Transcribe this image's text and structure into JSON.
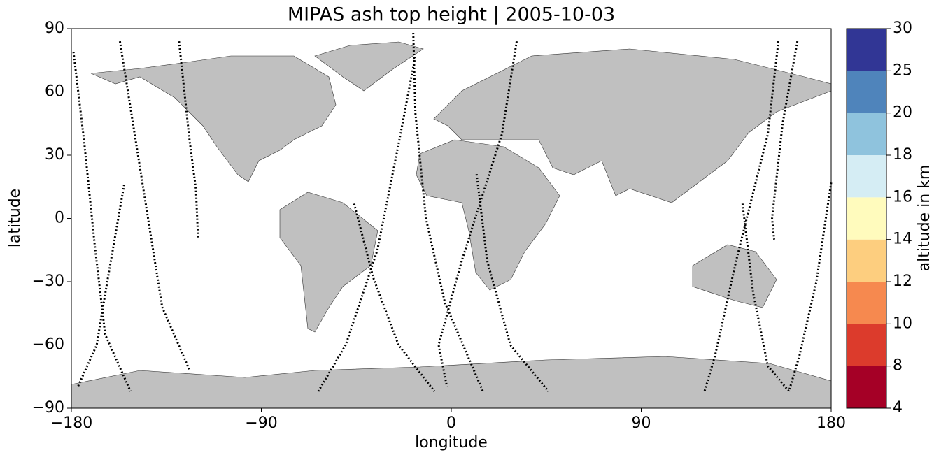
{
  "chart_data": {
    "type": "map-tracks",
    "title": "MIPAS ash top height | 2005-10-03",
    "xlabel": "longitude",
    "ylabel": "latitude",
    "xlim": [
      -180,
      180
    ],
    "ylim": [
      -90,
      90
    ],
    "xticks": [
      {
        "value": -180,
        "label": "−180"
      },
      {
        "value": -90,
        "label": "−90"
      },
      0,
      90,
      180
    ],
    "yticks": [
      {
        "value": -90,
        "label": "−90"
      },
      {
        "value": -60,
        "label": "−60"
      },
      {
        "value": -30,
        "label": "−30"
      },
      0,
      30,
      60,
      90
    ],
    "track_color": "#000000",
    "tracks": [
      {
        "x": [
          -179,
          -174,
          -169,
          -164,
          -152
        ],
        "y": [
          79,
          37,
          -12,
          -55,
          -82
        ]
      },
      {
        "x": [
          -157,
          -147,
          -137,
          -124
        ],
        "y": [
          84,
          21,
          -42,
          -72
        ]
      },
      {
        "x": [
          -129,
          -124,
          -121,
          -120
        ],
        "y": [
          84,
          37,
          14,
          -9
        ]
      },
      {
        "x": [
          -155,
          -163,
          -168,
          -177
        ],
        "y": [
          16,
          -30,
          -60,
          -80
        ]
      },
      {
        "x": [
          -46,
          -37,
          -25,
          -8
        ],
        "y": [
          7,
          -28,
          -60,
          -82
        ]
      },
      {
        "x": [
          -18,
          -17,
          -12,
          -3,
          15
        ],
        "y": [
          88,
          50,
          0,
          -40,
          -82
        ]
      },
      {
        "x": [
          -63,
          -50,
          -35,
          -25,
          -17
        ],
        "y": [
          -82,
          -60,
          -15,
          35,
          77
        ]
      },
      {
        "x": [
          31,
          24,
          5,
          -6,
          -2
        ],
        "y": [
          84,
          40,
          -20,
          -60,
          -80
        ]
      },
      {
        "x": [
          12,
          17,
          28,
          46
        ],
        "y": [
          21,
          -20,
          -60,
          -82
        ]
      },
      {
        "x": [
          155,
          150,
          135,
          125,
          120
        ],
        "y": [
          84,
          40,
          -20,
          -65,
          -82
        ]
      },
      {
        "x": [
          164,
          157,
          152,
          153
        ],
        "y": [
          84,
          45,
          0,
          -10
        ]
      },
      {
        "x": [
          138,
          143,
          150,
          160
        ],
        "y": [
          7,
          -35,
          -70,
          -82
        ]
      },
      {
        "x": [
          180,
          173,
          165,
          160
        ],
        "y": [
          17,
          -30,
          -65,
          -82
        ]
      }
    ],
    "colorbar": {
      "label": "altitude in km",
      "bounds": [
        4,
        8,
        10,
        12,
        14,
        16,
        18,
        20,
        25,
        30
      ],
      "colors": [
        "#a50026",
        "#dc3b2c",
        "#f6894f",
        "#fdce7f",
        "#fffbbd",
        "#d5edf4",
        "#8fc3dd",
        "#4f84bb",
        "#313695"
      ]
    }
  }
}
